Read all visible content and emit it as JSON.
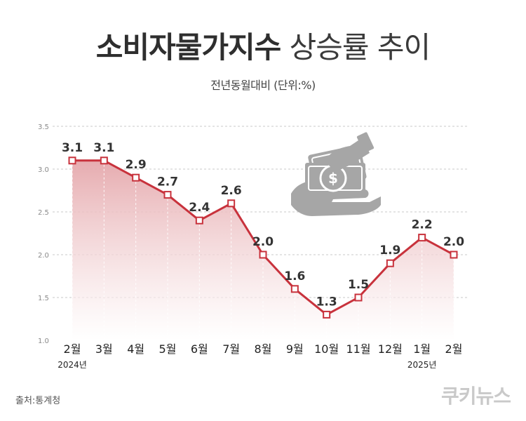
{
  "header": {
    "title_bold": "소비자물가지수",
    "title_light": "상승률 추이",
    "subtitle": "전년동월대비 (단위:%)"
  },
  "footer": {
    "source": "출처:통계청",
    "brand": "쿠키뉴스"
  },
  "colors": {
    "line": "#c8323c",
    "area_top": "#e5a7ab",
    "icon": "#a6a6a6"
  },
  "chart_data": {
    "type": "area",
    "categories": [
      "2월",
      "3월",
      "4월",
      "5월",
      "6월",
      "7월",
      "8월",
      "9월",
      "10월",
      "11월",
      "12월",
      "1월",
      "2월"
    ],
    "year_labels": [
      {
        "index": 0,
        "label": "2024년"
      },
      {
        "index": 11,
        "label": "2025년"
      }
    ],
    "series": [
      {
        "values": [
          3.1,
          3.1,
          2.9,
          2.7,
          2.4,
          2.6,
          2.0,
          1.6,
          1.3,
          1.5,
          1.9,
          2.2,
          2.0
        ]
      }
    ],
    "data_labels": [
      "3.1",
      "3.1",
      "2.9",
      "2.7",
      "2.4",
      "2.6",
      "2.0",
      "1.6",
      "1.3",
      "1.5",
      "1.9",
      "2.2",
      "2.0"
    ],
    "y_ticks": [
      "3.5",
      "3.0",
      "2.5",
      "2.0",
      "1.5",
      "1.0"
    ],
    "ylim": [
      1.0,
      3.5
    ],
    "grid": true,
    "legend": "none",
    "icon": "hand-with-money-icon"
  }
}
